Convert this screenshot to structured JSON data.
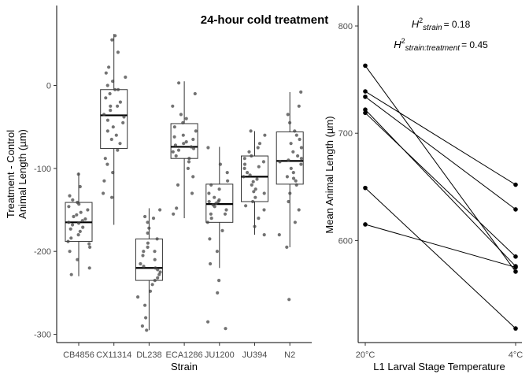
{
  "chart_data": [
    {
      "type": "box",
      "title": "24-hour cold treatment",
      "xlabel": "Strain",
      "ylabel_line1": "Treatment - Control",
      "ylabel_line2": "Animal Length (µm)",
      "ylim": [
        -310,
        70
      ],
      "yticks": [
        0,
        -100,
        -200,
        -300
      ],
      "ytick_labels": [
        "0",
        "-100",
        "-200",
        "-300"
      ],
      "categories": [
        "CB4856",
        "CX11314",
        "DL238",
        "ECA1286",
        "JU1200",
        "JU394",
        "N2"
      ],
      "boxes": [
        {
          "strain": "CB4856",
          "whisker_low": -230,
          "q1": -188,
          "median": -165,
          "q3": -141,
          "whisker_high": -105
        },
        {
          "strain": "CX11314",
          "whisker_low": -168,
          "q1": -76,
          "median": -36,
          "q3": -5,
          "whisker_high": 62
        },
        {
          "strain": "DL238",
          "whisker_low": -295,
          "q1": -235,
          "median": -220,
          "q3": -185,
          "whisker_high": -148
        },
        {
          "strain": "ECA1286",
          "whisker_low": -160,
          "q1": -88,
          "median": -74,
          "q3": -46,
          "whisker_high": 5
        },
        {
          "strain": "JU1200",
          "whisker_low": -220,
          "q1": -165,
          "median": -143,
          "q3": -119,
          "whisker_high": -74
        },
        {
          "strain": "JU394",
          "whisker_low": -180,
          "q1": -140,
          "median": -110,
          "q3": -85,
          "whisker_high": -55
        },
        {
          "strain": "N2",
          "whisker_low": -195,
          "q1": -119,
          "median": -91,
          "q3": -56,
          "whisker_high": -8
        }
      ],
      "points": [
        {
          "strain": "CB4856",
          "y": [
            -107,
            -122,
            -133,
            -138,
            -141,
            -143,
            -146,
            -150,
            -153,
            -156,
            -158,
            -161,
            -163,
            -165,
            -166,
            -168,
            -171,
            -173,
            -176,
            -180,
            -184,
            -188,
            -191,
            -195,
            -200,
            -210,
            -220,
            -228
          ]
        },
        {
          "strain": "CX11314",
          "y": [
            55,
            60,
            40,
            22,
            15,
            10,
            5,
            0,
            -5,
            -10,
            -15,
            -20,
            -25,
            -30,
            -35,
            -38,
            -42,
            -45,
            -50,
            -55,
            -60,
            -65,
            -70,
            -78,
            -88,
            -95,
            -105,
            -115,
            -130,
            -135,
            -5,
            -25
          ]
        },
        {
          "strain": "DL238",
          "y": [
            -150,
            -158,
            -165,
            -172,
            -178,
            -185,
            -190,
            -195,
            -200,
            -205,
            -210,
            -215,
            -218,
            -220,
            -222,
            -225,
            -228,
            -232,
            -235,
            -240,
            -248,
            -255,
            -265,
            -280,
            -290,
            -295,
            -160,
            -200
          ]
        },
        {
          "strain": "ECA1286",
          "y": [
            3,
            -10,
            -25,
            -35,
            -40,
            -45,
            -50,
            -55,
            -60,
            -65,
            -68,
            -70,
            -72,
            -74,
            -76,
            -78,
            -80,
            -85,
            -88,
            -92,
            -100,
            -110,
            -120,
            -130,
            -148,
            -155,
            -62
          ]
        },
        {
          "strain": "JU1200",
          "y": [
            -75,
            -95,
            -105,
            -115,
            -120,
            -125,
            -130,
            -135,
            -138,
            -140,
            -142,
            -144,
            -146,
            -150,
            -155,
            -160,
            -165,
            -175,
            -185,
            -200,
            -215,
            -235,
            -250,
            -285,
            -293,
            -140,
            -155
          ]
        },
        {
          "strain": "JU394",
          "y": [
            -55,
            -60,
            -70,
            -75,
            -80,
            -85,
            -88,
            -92,
            -95,
            -100,
            -105,
            -108,
            -110,
            -113,
            -116,
            -120,
            -125,
            -130,
            -135,
            -140,
            -145,
            -150,
            -160,
            -170,
            -180,
            -98,
            -128
          ]
        },
        {
          "strain": "N2",
          "y": [
            -8,
            -25,
            -35,
            -45,
            -55,
            -60,
            -65,
            -70,
            -75,
            -80,
            -85,
            -90,
            -92,
            -95,
            -100,
            -105,
            -110,
            -115,
            -120,
            -130,
            -140,
            -150,
            -165,
            -180,
            -195,
            -258,
            -88,
            -112
          ]
        }
      ]
    },
    {
      "type": "line",
      "xlabel": "L1 Larval Stage Temperature",
      "ylabel": "Mean Animal Length (µm)",
      "ylim": [
        505,
        818
      ],
      "yticks": [
        600,
        700,
        800
      ],
      "ytick_labels": [
        "600",
        "700",
        "800"
      ],
      "categories": [
        "20°C",
        "4°C"
      ],
      "annotation_h2_strain": {
        "symbol": "H",
        "superscript": "2",
        "subscript": "strain",
        "value": "= 0.18"
      },
      "annotation_h2_interaction": {
        "symbol": "H",
        "superscript": "2",
        "subscript": "strain:treatment",
        "value": "= 0.45"
      },
      "pairs": [
        {
          "from": 763,
          "to": 571
        },
        {
          "from": 739,
          "to": 652
        },
        {
          "from": 734,
          "to": 629
        },
        {
          "from": 722,
          "to": 576
        },
        {
          "from": 719,
          "to": 585
        },
        {
          "from": 649,
          "to": 518
        },
        {
          "from": 615,
          "to": 575
        }
      ]
    }
  ]
}
